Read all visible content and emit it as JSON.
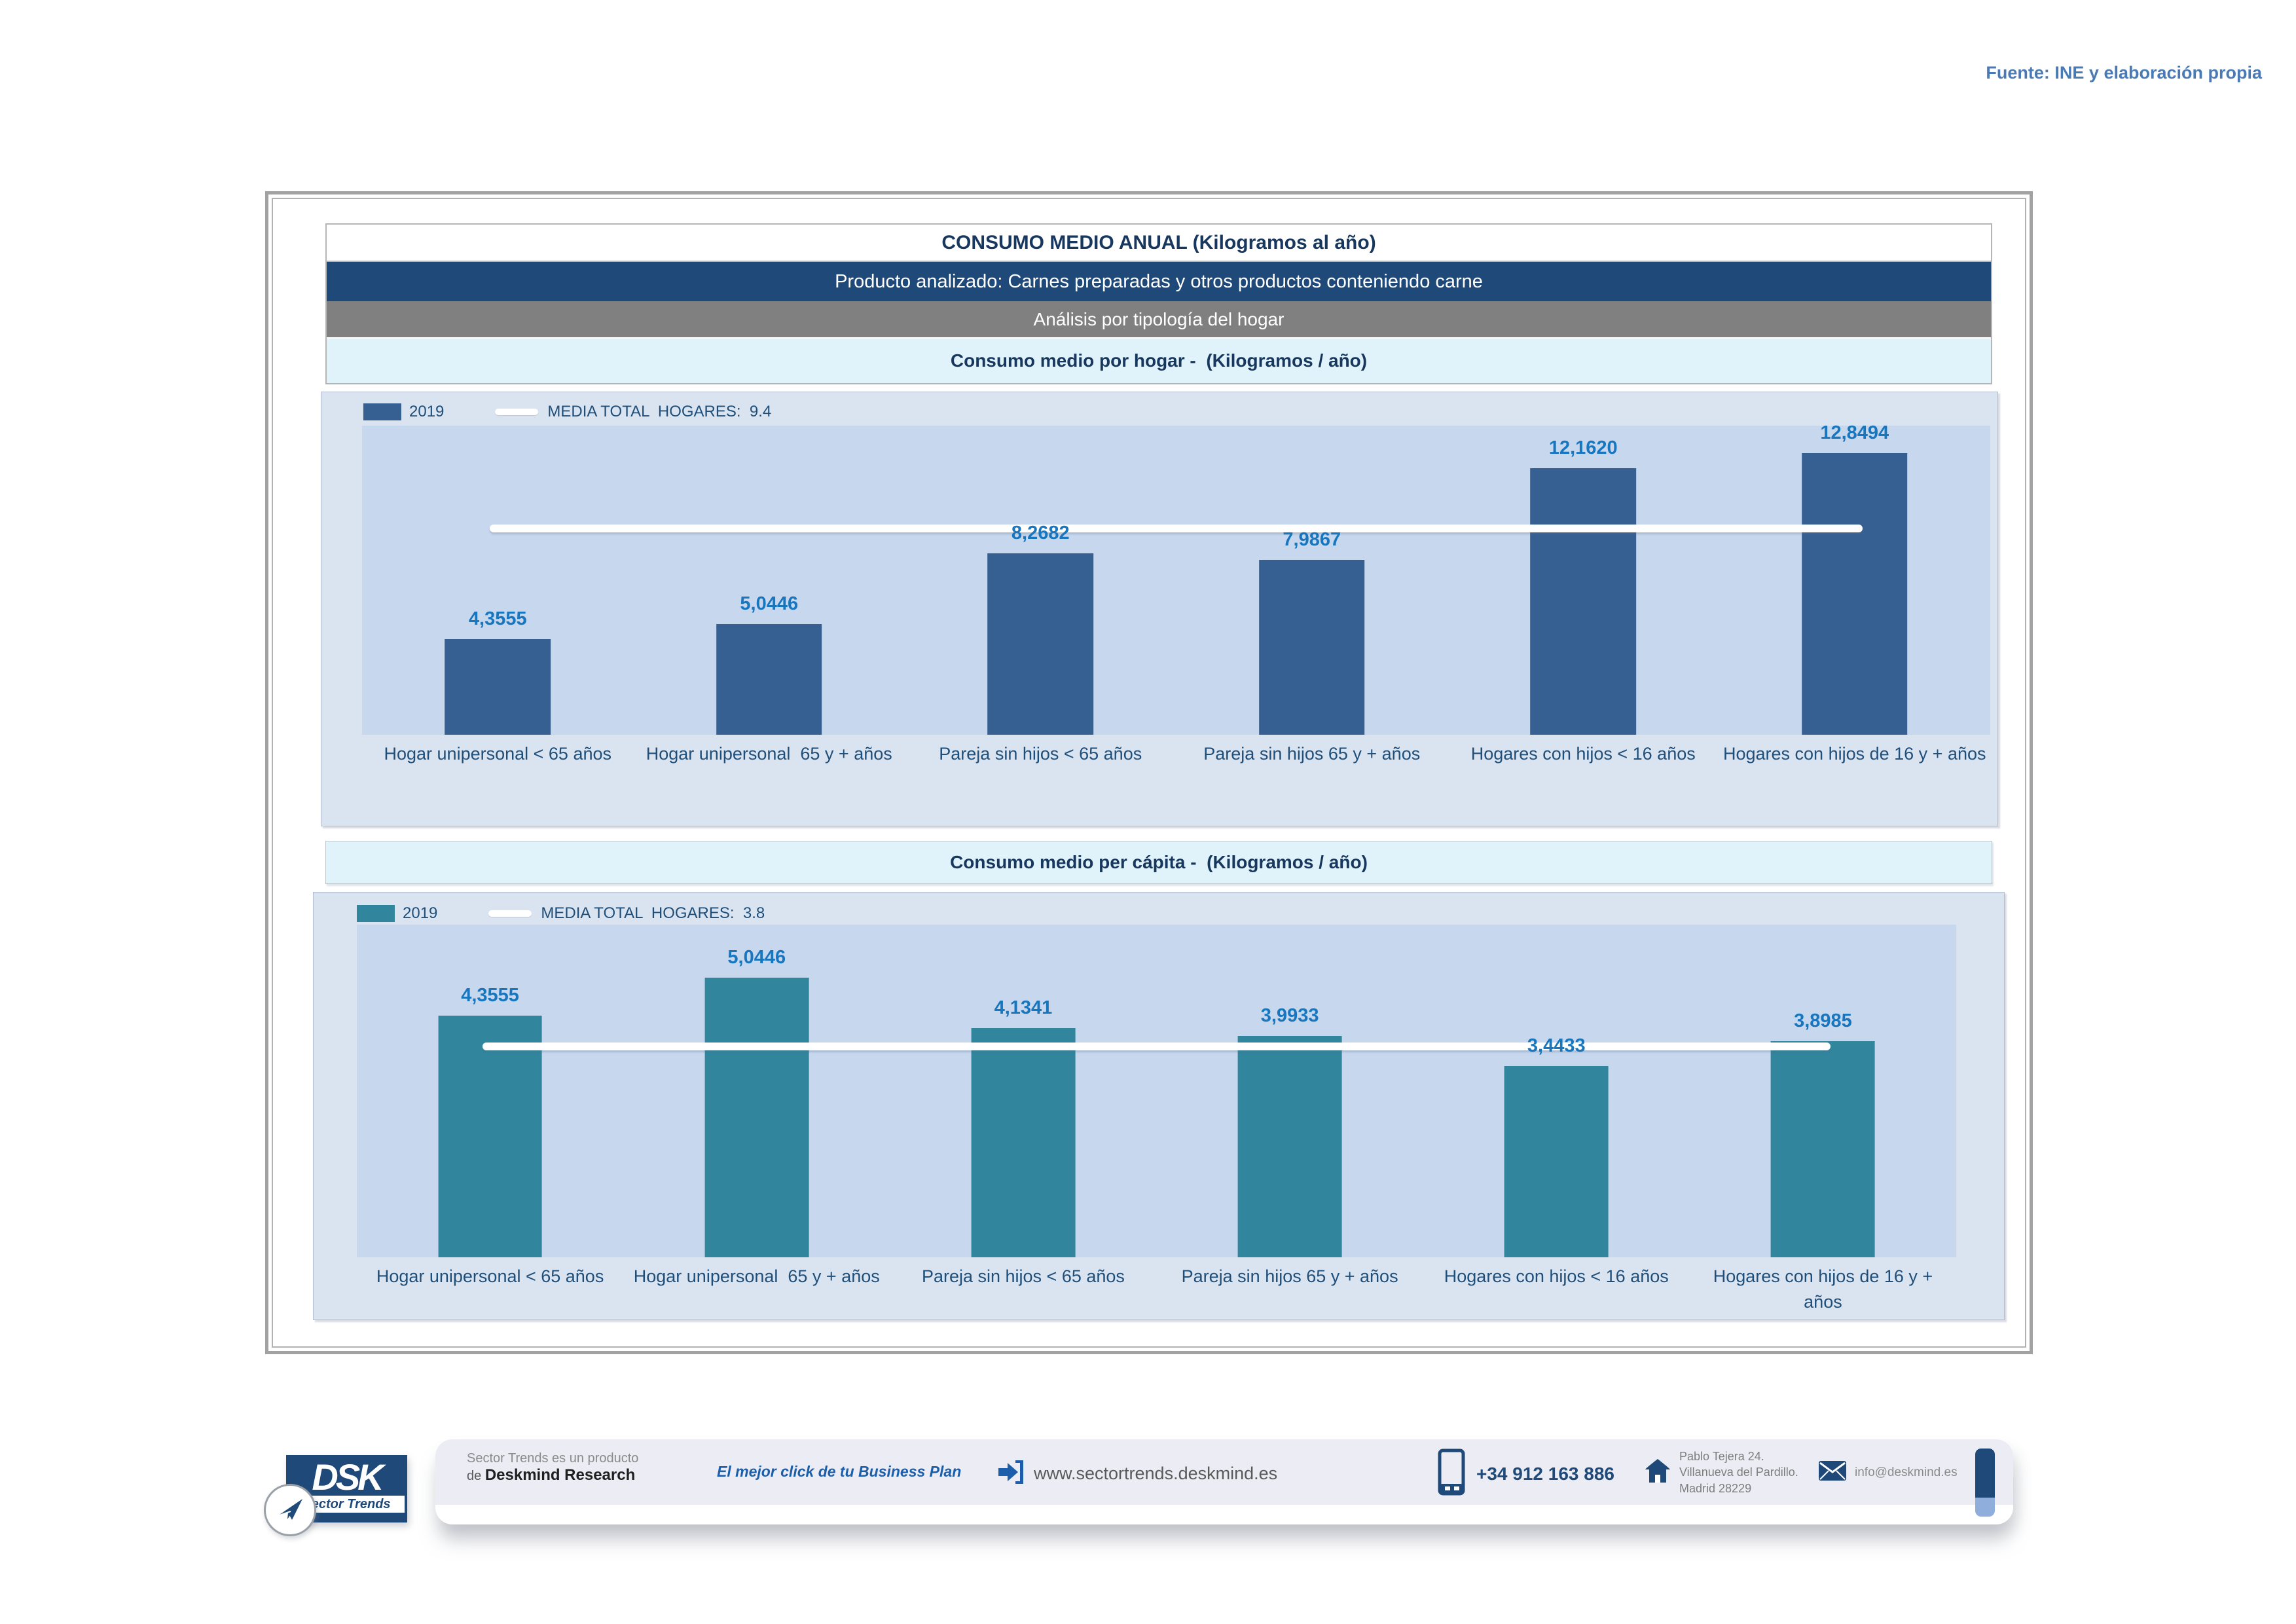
{
  "source_note": "Fuente: INE y elaboración propia",
  "header": {
    "title": "CONSUMO MEDIO ANUAL (Kilogramos al año)",
    "product": "Producto analizado: Carnes preparadas y otros productos conteniendo carne",
    "analysis": "Análisis por tipología del hogar"
  },
  "chart_data": [
    {
      "type": "bar",
      "title": "Consumo medio por hogar -  (Kilogramos / año)",
      "categories": [
        "Hogar unipersonal < 65 años",
        "Hogar unipersonal  65 y + años",
        "Pareja sin hijos < 65 años",
        "Pareja sin hijos 65 y + años",
        "Hogares con hijos < 16 años",
        "Hogares con hijos de 16 y + años"
      ],
      "series": [
        {
          "name": "2019",
          "values": [
            4.3555,
            5.0446,
            8.2682,
            7.9867,
            12.162,
            12.8494
          ]
        }
      ],
      "value_labels": [
        "4,3555",
        "5,0446",
        "8,2682",
        "7,9867",
        "12,1620",
        "12,8494"
      ],
      "media_total": 9.4,
      "media_label": "MEDIA TOTAL  HOGARES:  9.4",
      "bar_color": "#366092",
      "ylim": [
        0,
        14.1
      ],
      "grid": false,
      "legend_position": "top-left",
      "xlabel": "",
      "ylabel": ""
    },
    {
      "type": "bar",
      "title": "Consumo medio per cápita -  (Kilogramos / año)",
      "categories": [
        "Hogar unipersonal < 65 años",
        "Hogar unipersonal  65 y + años",
        "Pareja sin hijos < 65 años",
        "Pareja sin hijos 65 y + años",
        "Hogares con hijos < 16 años",
        "Hogares con hijos de 16 y + años"
      ],
      "series": [
        {
          "name": "2019",
          "values": [
            4.3555,
            5.0446,
            4.1341,
            3.9933,
            3.4433,
            3.8985
          ]
        }
      ],
      "value_labels": [
        "4,3555",
        "5,0446",
        "4,1341",
        "3,9933",
        "3,4433",
        "3,8985"
      ],
      "media_total": 3.8,
      "media_label": "MEDIA TOTAL  HOGARES:  3.8",
      "bar_color": "#31859C",
      "ylim": [
        0,
        6.0
      ],
      "grid": false,
      "legend_position": "top-left",
      "xlabel": "",
      "ylabel": ""
    }
  ],
  "footer": {
    "brand_letters": "DSK",
    "brand_tagline": "Sector Trends",
    "product_line1": "Sector Trends es un producto",
    "product_line2_prefix": "de ",
    "product_line2_bold": "Deskmind Research",
    "slogan": "El mejor click de tu Business Plan",
    "website": "www.sectortrends.deskmind.es",
    "phone": "+34 912 163 886",
    "address_lines": [
      "Pablo Tejera 24.",
      "Villanueva del Pardillo.",
      "Madrid 28229"
    ],
    "email": "info@deskmind.es"
  },
  "colors": {
    "accent_dark_blue": "#1F4978",
    "bar_blue": "#366092",
    "bar_teal": "#31859C",
    "value_label_blue": "#1776BE",
    "panel_bg": "#DAE4F1",
    "plot_bg": "#C6D7EE",
    "cyan_band": "#E0F3FB",
    "gray_band": "#808080",
    "source_blue": "#4A7AB5"
  }
}
